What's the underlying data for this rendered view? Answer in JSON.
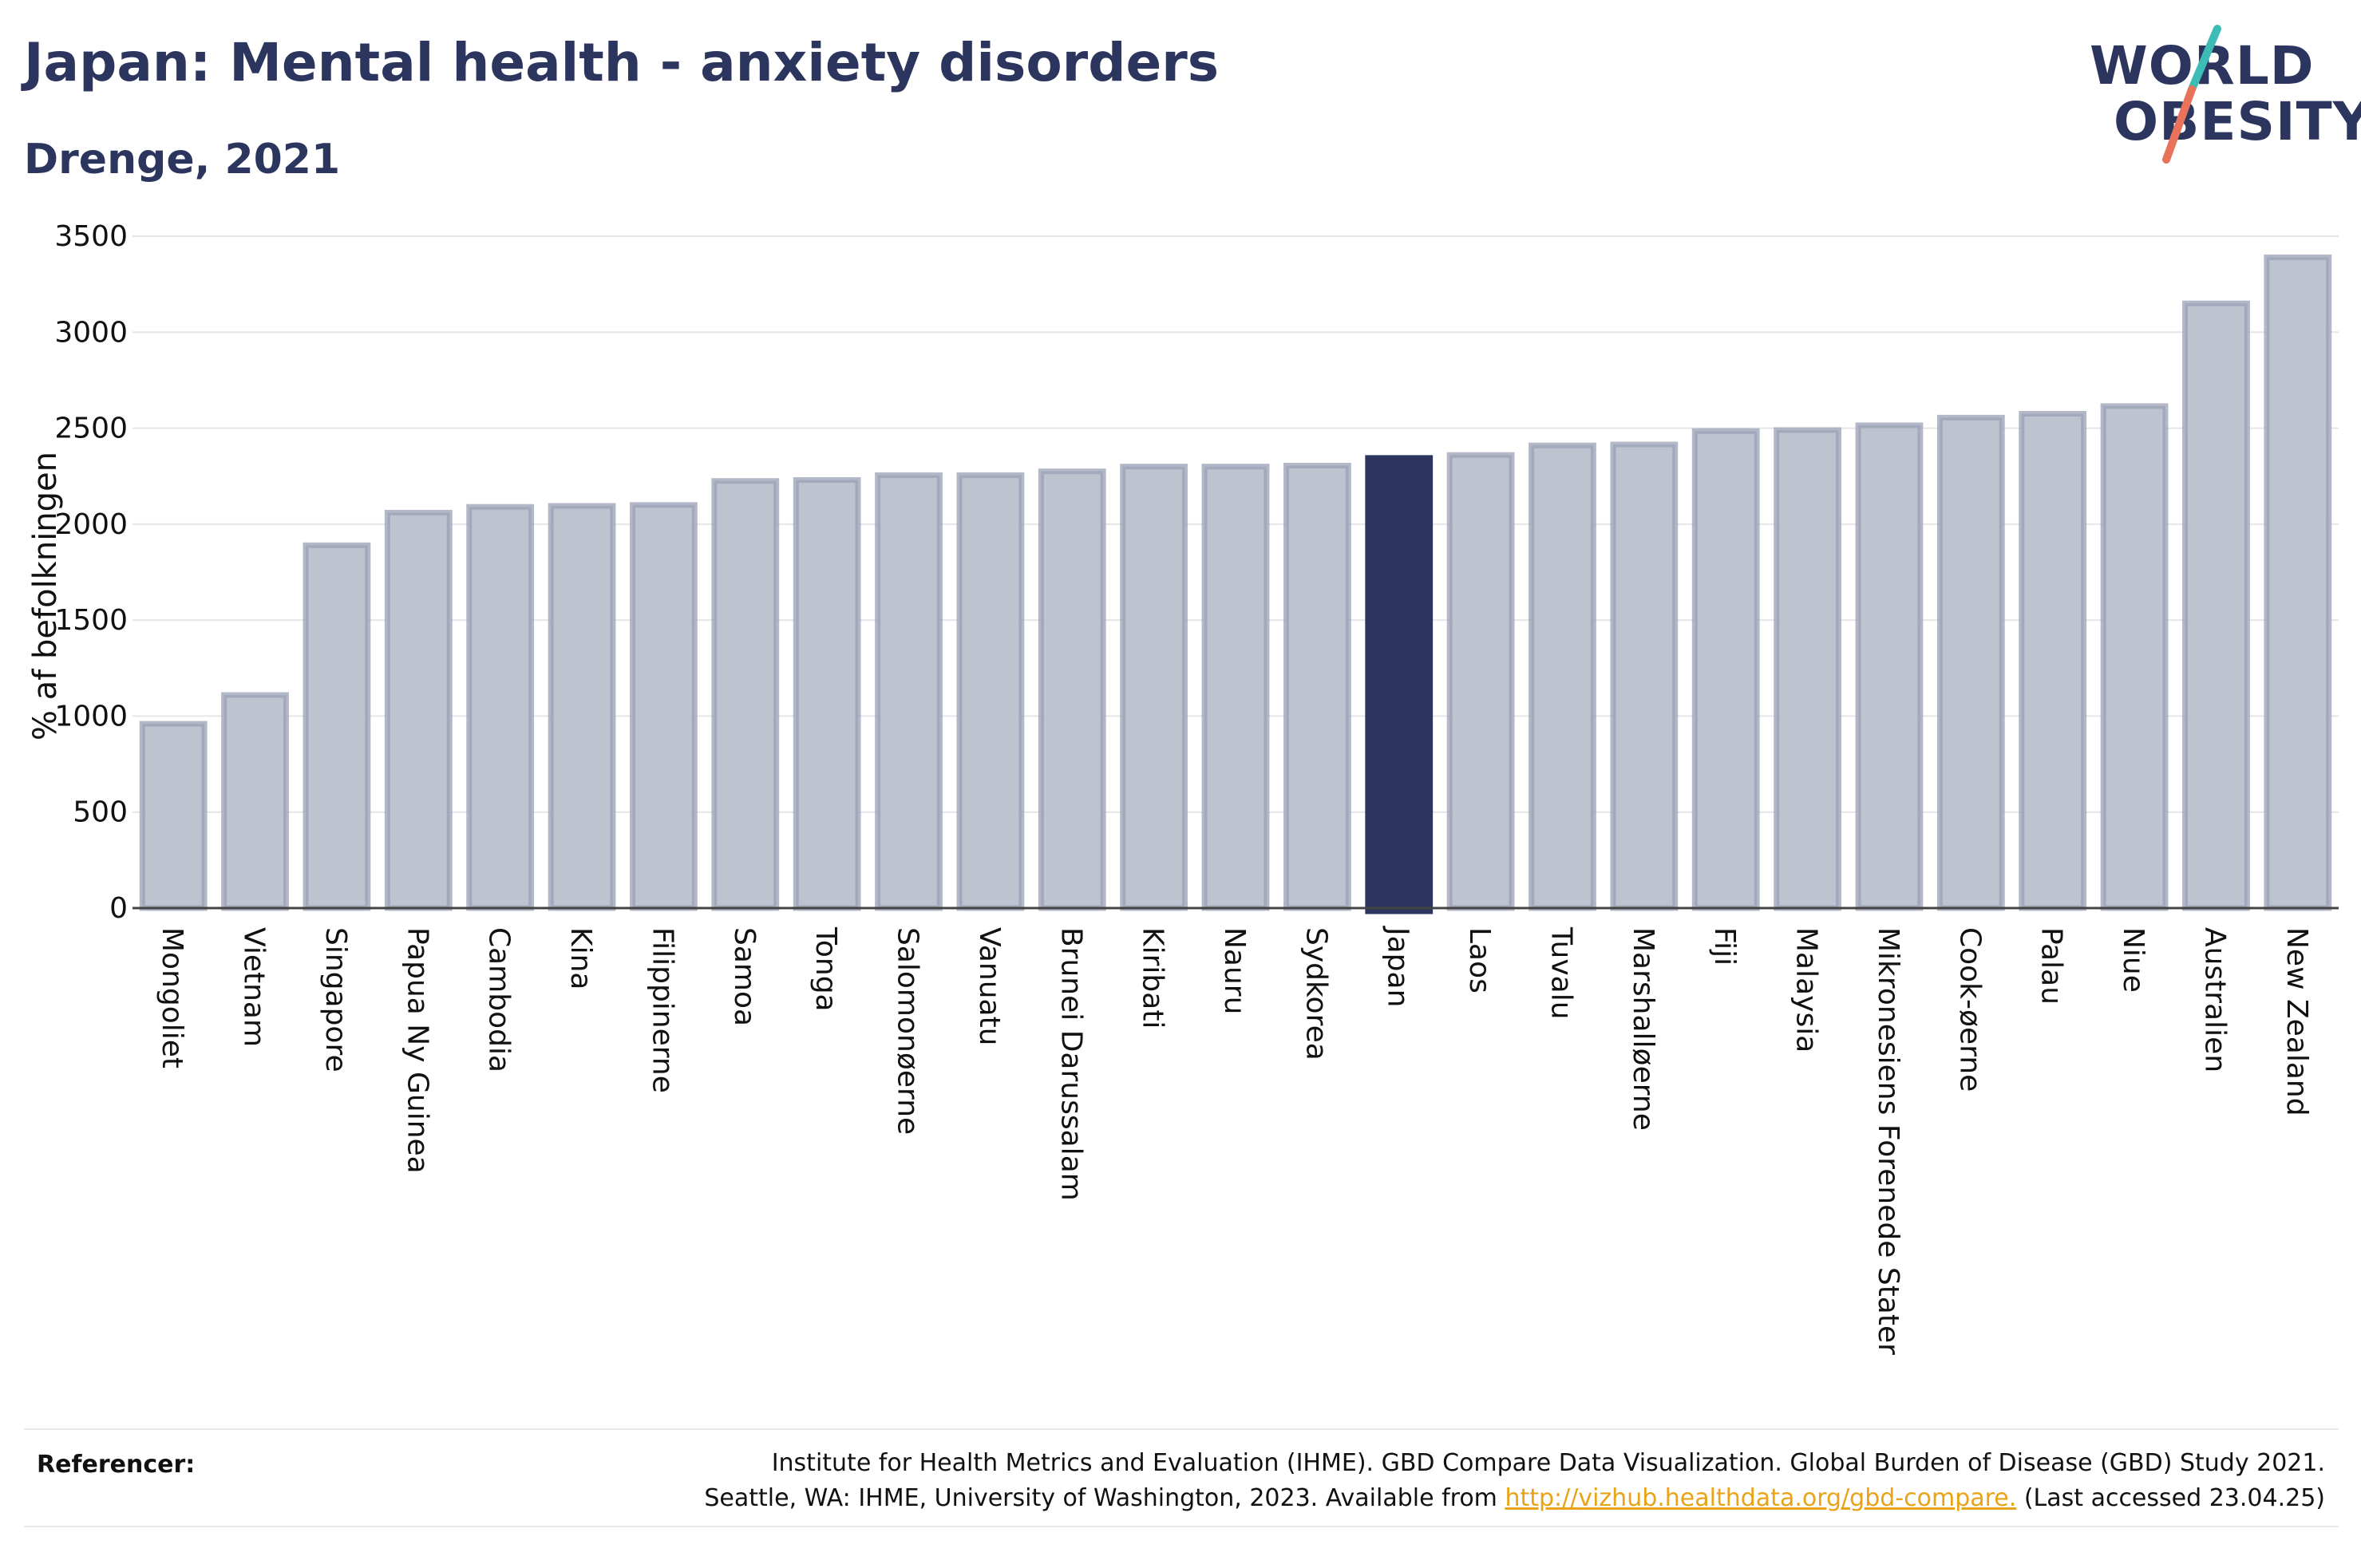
{
  "header": {
    "title": "Japan: Mental health - anxiety disorders",
    "subtitle": "Drenge, 2021"
  },
  "logo": {
    "line1": "WORLD",
    "line2": "OBESITY",
    "colors": {
      "text": "#2b355e",
      "slash_top": "#3cbcb4",
      "slash_bottom": "#e8735a"
    }
  },
  "colors": {
    "bar_default": "#bfc3d0",
    "bar_border": "#9aa0b6",
    "bar_highlight": "#2b355e",
    "grid": "#e6e6ea",
    "axis_text": "#111111"
  },
  "chart_data": {
    "type": "bar",
    "ylabel": "% af befolkningen",
    "ylim": [
      0,
      3500
    ],
    "yticks": [
      0,
      500,
      1000,
      1500,
      2000,
      2500,
      3000,
      3500
    ],
    "grid": true,
    "highlight": "Japan",
    "categories": [
      "Mongoliet",
      "Vietnam",
      "Singapore",
      "Papua Ny Guinea",
      "Cambodia",
      "Kina",
      "Filippinerne",
      "Samoa",
      "Tonga",
      "Salomonøerne",
      "Vanuatu",
      "Brunei Darussalam",
      "Kiribati",
      "Nauru",
      "Sydkorea",
      "Japan",
      "Laos",
      "Tuvalu",
      "Marshalløerne",
      "Fiji",
      "Malaysia",
      "Mikronesiens Forenede Stater",
      "Cook-øerne",
      "Palau",
      "Niue",
      "Australien",
      "New Zealand"
    ],
    "values": [
      960,
      1110,
      1890,
      2060,
      2090,
      2095,
      2100,
      2225,
      2230,
      2255,
      2255,
      2275,
      2300,
      2300,
      2305,
      2345,
      2360,
      2410,
      2415,
      2485,
      2490,
      2515,
      2555,
      2575,
      2615,
      3150,
      3390
    ]
  },
  "footer": {
    "label": "Referencer:",
    "line1": "Institute for Health Metrics and Evaluation (IHME). GBD Compare Data Visualization. Global Burden of Disease (GBD) Study 2021.",
    "line2_prefix": "Seattle, WA: IHME, University of Washington, 2023. Available from ",
    "link_text": "http://vizhub.healthdata.org/gbd-compare.",
    "line2_suffix": " (Last accessed 23.04.25)"
  }
}
